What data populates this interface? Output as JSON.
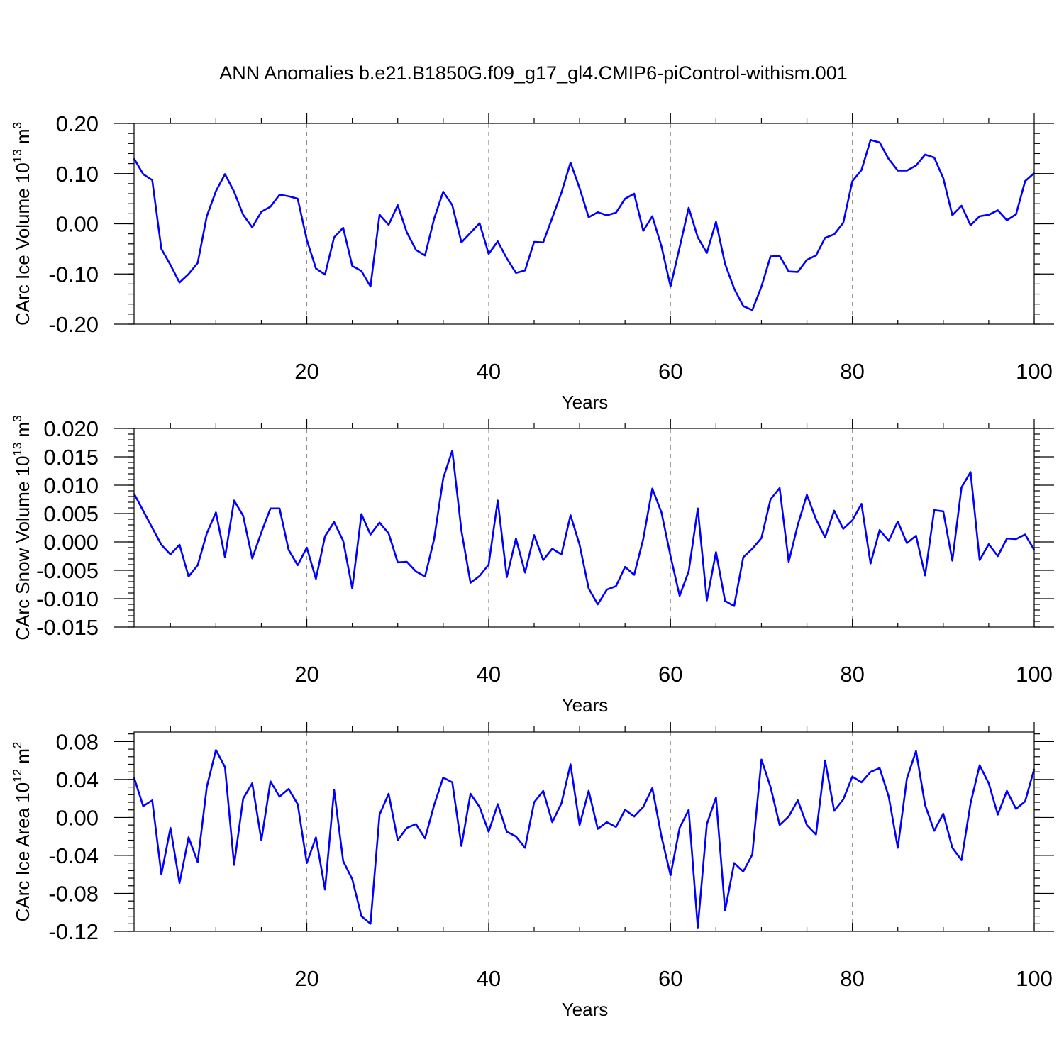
{
  "title": "ANN Anomalies b.e21.B1850G.f09_g17_gl4.CMIP6-piControl-withism.001",
  "colors": {
    "line": "#0000ff",
    "frame": "#000000",
    "grid": "#888888"
  },
  "chart_data": [
    {
      "type": "line",
      "ylabel": {
        "main": "CArc Ice Volume 10",
        "sup": "13",
        "tail": " m",
        "sup2": "3"
      },
      "xlabel": "Years",
      "xlim": [
        1,
        100
      ],
      "ylim": [
        -0.2,
        0.2
      ],
      "x_ticks": [
        "20",
        "40",
        "60",
        "80",
        "100"
      ],
      "x_tick_values": [
        20,
        40,
        60,
        80,
        100
      ],
      "y_ticks": [
        "0.20",
        "0.10",
        "0.00",
        "-0.10",
        "-0.20"
      ],
      "y_tick_values": [
        0.2,
        0.1,
        0.0,
        -0.1,
        -0.2
      ],
      "y_minor_step": 0.02,
      "grid": "vertical dashed at 20, 40, 60, 80",
      "series": [
        {
          "x_start": 1,
          "values": [
            0.13,
            0.099,
            0.087,
            -0.05,
            -0.082,
            -0.117,
            -0.1,
            -0.078,
            0.015,
            0.065,
            0.099,
            0.064,
            0.018,
            -0.007,
            0.024,
            0.034,
            0.058,
            0.055,
            0.05,
            -0.032,
            -0.089,
            -0.101,
            -0.027,
            -0.008,
            -0.084,
            -0.094,
            -0.125,
            0.018,
            -0.002,
            0.037,
            -0.017,
            -0.052,
            -0.063,
            0.01,
            0.064,
            0.037,
            -0.037,
            -0.018,
            0.001,
            -0.06,
            -0.035,
            -0.069,
            -0.098,
            -0.093,
            -0.036,
            -0.037,
            0.012,
            0.062,
            0.122,
            0.071,
            0.013,
            0.023,
            0.017,
            0.022,
            0.05,
            0.06,
            -0.014,
            0.015,
            -0.045,
            -0.125,
            -0.047,
            0.032,
            -0.027,
            -0.058,
            0.004,
            -0.08,
            -0.129,
            -0.164,
            -0.172,
            -0.125,
            -0.065,
            -0.064,
            -0.095,
            -0.096,
            -0.072,
            -0.063,
            -0.028,
            -0.021,
            0.002,
            0.085,
            0.107,
            0.167,
            0.162,
            0.129,
            0.106,
            0.106,
            0.116,
            0.138,
            0.132,
            0.091,
            0.017,
            0.036,
            -0.003,
            0.015,
            0.018,
            0.027,
            0.007,
            0.019,
            0.085,
            0.101
          ]
        }
      ]
    },
    {
      "type": "line",
      "ylabel": {
        "main": "CArc Snow Volume 10",
        "sup": "13",
        "tail": " m",
        "sup2": "3"
      },
      "xlabel": "Years",
      "xlim": [
        1,
        100
      ],
      "ylim": [
        -0.015,
        0.02
      ],
      "x_ticks": [
        "20",
        "40",
        "60",
        "80",
        "100"
      ],
      "x_tick_values": [
        20,
        40,
        60,
        80,
        100
      ],
      "y_ticks": [
        "0.020",
        "0.015",
        "0.010",
        "0.005",
        "0.000",
        "-0.005",
        "-0.010",
        "-0.015"
      ],
      "y_tick_values": [
        0.02,
        0.015,
        0.01,
        0.005,
        0.0,
        -0.005,
        -0.01,
        -0.015
      ],
      "y_minor_step": 0.001,
      "grid": "vertical dashed at 20, 40, 60, 80",
      "series": [
        {
          "x_start": 1,
          "values": [
            0.0085,
            0.0055,
            0.0025,
            -0.0005,
            -0.0022,
            -0.0005,
            -0.0061,
            -0.0041,
            0.0015,
            0.0052,
            -0.0027,
            0.0073,
            0.0046,
            -0.0029,
            0.0017,
            0.0059,
            0.0059,
            -0.0014,
            -0.0041,
            -0.001,
            -0.0065,
            0.001,
            0.0035,
            0.0002,
            -0.0082,
            0.0049,
            0.0013,
            0.0034,
            0.0015,
            -0.0036,
            -0.0035,
            -0.0052,
            -0.0061,
            0.0005,
            0.0112,
            0.0161,
            0.002,
            -0.0072,
            -0.006,
            -0.004,
            0.0073,
            -0.0062,
            0.0006,
            -0.0054,
            0.0012,
            -0.0032,
            -0.0012,
            -0.0022,
            0.0047,
            -0.0005,
            -0.0082,
            -0.011,
            -0.0084,
            -0.0078,
            -0.0044,
            -0.0058,
            0.0005,
            0.0094,
            0.0052,
            -0.0025,
            -0.0095,
            -0.0052,
            0.0059,
            -0.0103,
            -0.0018,
            -0.0104,
            -0.0113,
            -0.0027,
            -0.0012,
            0.0007,
            0.0075,
            0.0095,
            -0.0035,
            0.003,
            0.0083,
            0.004,
            0.0008,
            0.0055,
            0.0023,
            0.0038,
            0.0067,
            -0.0038,
            0.0021,
            0.0002,
            0.0036,
            -0.0002,
            0.0011,
            -0.0059,
            0.0056,
            0.0054,
            -0.0033,
            0.0096,
            0.0123,
            -0.0032,
            -0.0004,
            -0.0025,
            0.0006,
            0.0005,
            0.0013,
            -0.0014
          ]
        }
      ]
    },
    {
      "type": "line",
      "ylabel": {
        "main": "CArc Ice Area 10",
        "sup": "12",
        "tail": " m",
        "sup2": "2"
      },
      "xlabel": "Years",
      "xlim": [
        1,
        100
      ],
      "ylim": [
        -0.12,
        0.09
      ],
      "x_ticks": [
        "20",
        "40",
        "60",
        "80",
        "100"
      ],
      "x_tick_values": [
        20,
        40,
        60,
        80,
        100
      ],
      "y_ticks": [
        "0.08",
        "0.04",
        "0.00",
        "-0.04",
        "-0.08",
        "-0.12"
      ],
      "y_tick_values": [
        0.08,
        0.04,
        0.0,
        -0.04,
        -0.08,
        -0.12
      ],
      "y_minor_step": 0.008,
      "grid": "vertical dashed at 20, 40, 60, 80",
      "series": [
        {
          "x_start": 1,
          "values": [
            0.042,
            0.012,
            0.018,
            -0.06,
            -0.011,
            -0.069,
            -0.021,
            -0.047,
            0.032,
            0.071,
            0.053,
            -0.05,
            0.02,
            0.036,
            -0.024,
            0.038,
            0.022,
            0.03,
            0.014,
            -0.048,
            -0.021,
            -0.076,
            0.029,
            -0.046,
            -0.065,
            -0.104,
            -0.112,
            0.003,
            0.025,
            -0.024,
            -0.011,
            -0.007,
            -0.022,
            0.013,
            0.042,
            0.037,
            -0.03,
            0.025,
            0.011,
            -0.015,
            0.014,
            -0.015,
            -0.02,
            -0.032,
            0.016,
            0.028,
            -0.005,
            0.015,
            0.056,
            -0.008,
            0.028,
            -0.012,
            -0.005,
            -0.01,
            0.008,
            0.001,
            0.011,
            0.031,
            -0.02,
            -0.061,
            -0.011,
            0.008,
            -0.116,
            -0.007,
            0.021,
            -0.098,
            -0.048,
            -0.057,
            -0.039,
            0.061,
            0.032,
            -0.008,
            0.001,
            0.018,
            -0.008,
            -0.018,
            0.06,
            0.007,
            0.019,
            0.043,
            0.037,
            0.048,
            0.052,
            0.022,
            -0.032,
            0.041,
            0.07,
            0.013,
            -0.014,
            0.004,
            -0.032,
            -0.045,
            0.015,
            0.055,
            0.036,
            0.003,
            0.028,
            0.009,
            0.017,
            0.051
          ]
        }
      ]
    }
  ]
}
